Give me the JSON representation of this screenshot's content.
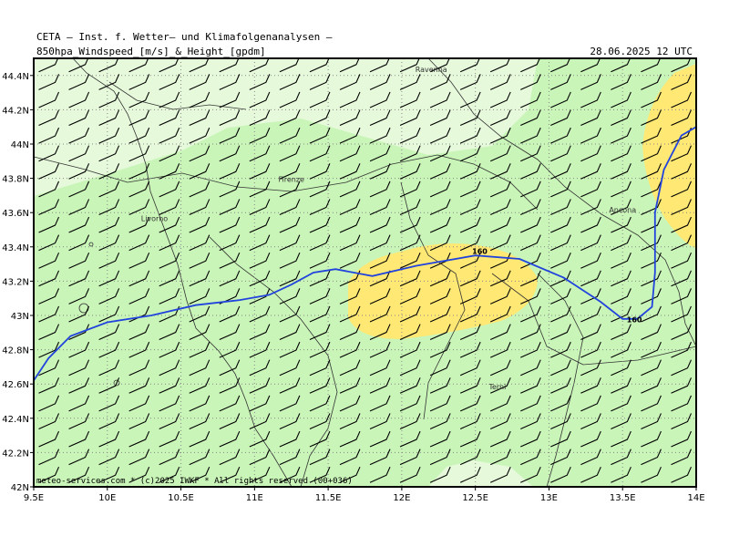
{
  "header": {
    "line1": "CETA — Inst. f. Wetter— und Klimafolgenanalysen —",
    "line2": "850hpa_Windspeed_[m/s]_&_Height_[gpdm]",
    "datetime": "28.06.2025 12 UTC"
  },
  "footer": "meteo-services.com * (c)2025 IWKF * All rights reserved (00+036)",
  "axes": {
    "x_labels": [
      "9.5E",
      "10E",
      "10.5E",
      "11E",
      "11.5E",
      "12E",
      "12.5E",
      "13E",
      "13.5E",
      "14E"
    ],
    "y_labels": [
      "44.4N",
      "44.2N",
      "44N",
      "43.8N",
      "43.6N",
      "43.4N",
      "43.2N",
      "43N",
      "42.8N",
      "42.6N",
      "42.4N",
      "42.2N",
      "42N"
    ]
  },
  "cities": [
    {
      "name": "Ravenna",
      "lon": 12.2,
      "lat": 44.42
    },
    {
      "name": "Firenze",
      "lon": 11.25,
      "lat": 43.78
    },
    {
      "name": "Livorno",
      "lon": 10.32,
      "lat": 43.55
    },
    {
      "name": "Ancona",
      "lon": 13.5,
      "lat": 43.6
    },
    {
      "name": "Terni",
      "lon": 12.65,
      "lat": 42.57
    }
  ],
  "contour": {
    "labels": [
      "160",
      "160"
    ],
    "color": "#2244dd",
    "points": [
      [
        9.5,
        42.62
      ],
      [
        9.6,
        42.75
      ],
      [
        9.75,
        42.88
      ],
      [
        10.0,
        42.96
      ],
      [
        10.3,
        43.0
      ],
      [
        10.6,
        43.06
      ],
      [
        10.9,
        43.09
      ],
      [
        11.1,
        43.12
      ],
      [
        11.25,
        43.18
      ],
      [
        11.4,
        43.25
      ],
      [
        11.55,
        43.27
      ],
      [
        11.8,
        43.23
      ],
      [
        12.1,
        43.29
      ],
      [
        12.5,
        43.35
      ],
      [
        12.8,
        43.33
      ],
      [
        13.1,
        43.22
      ],
      [
        13.35,
        43.08
      ],
      [
        13.5,
        42.98
      ],
      [
        13.6,
        42.98
      ],
      [
        13.7,
        43.05
      ],
      [
        13.72,
        43.25
      ],
      [
        13.72,
        43.6
      ],
      [
        13.78,
        43.85
      ],
      [
        13.9,
        44.05
      ],
      [
        14.0,
        44.1
      ]
    ]
  },
  "contour_label_positions": [
    [
      12.53,
      43.36
    ],
    [
      13.58,
      42.96
    ]
  ],
  "colors": {
    "light_green": "#c9f5b8",
    "pale_green": "#e6fadb",
    "yellow": "#ffe873",
    "contour": "#2244dd",
    "coast": "#333333"
  },
  "wind_barbs": {
    "direction": "westerly",
    "rows": 24,
    "cols": 22
  }
}
